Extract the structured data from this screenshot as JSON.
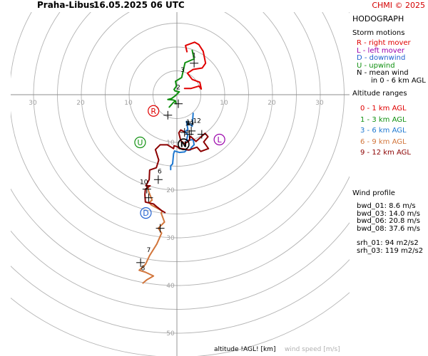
{
  "header": {
    "station": "Praha-Libus",
    "datetime": "16.05.2025 06 UTC",
    "credit": "CHMI © 2025"
  },
  "panel": {
    "title": "HODOGRAPH",
    "storm_motions": {
      "title": "Storm motions",
      "items": [
        {
          "text": "R - right mover",
          "color": "#e00000"
        },
        {
          "text": "L - left mover",
          "color": "#9900aa"
        },
        {
          "text": "D - downwind",
          "color": "#1f5fd0"
        },
        {
          "text": "U - upwind",
          "color": "#109010"
        },
        {
          "text": "N - mean wind",
          "color": "#000000"
        },
        {
          "text": "in 0 - 6 km AGL",
          "color": "#000000",
          "indent": true
        }
      ]
    },
    "altitude_ranges": {
      "title": "Altitude ranges",
      "items": [
        {
          "text": "0 - 1 km AGL",
          "color": "#e00000"
        },
        {
          "text": "1 - 3 km AGL",
          "color": "#109010"
        },
        {
          "text": "3 - 6 km AGL",
          "color": "#1f78d0"
        },
        {
          "text": "6 - 9 km AGL",
          "color": "#d2763c"
        },
        {
          "text": "9 - 12 km AGL",
          "color": "#8b0000"
        }
      ]
    },
    "wind_profile": {
      "title": "Wind profile",
      "items": [
        "bwd_01: 8.6 m/s",
        "bwd_03: 14.0 m/s",
        "bwd_06: 20.8 m/s",
        "bwd_08: 37.6 m/s",
        "srh_01: 94 m2/s2",
        "srh_03: 119 m2/s2"
      ]
    }
  },
  "footer": {
    "altitude_label": "altitude !AGL! [km]",
    "wind_speed_label": "wind speed [m/s]"
  },
  "chart_data": {
    "type": "line",
    "title": "HODOGRAPH",
    "xlabel": "",
    "ylabel": "",
    "units": "m/s",
    "rings": [
      5,
      10,
      15,
      20,
      25,
      30,
      35,
      40,
      45,
      50,
      55
    ],
    "ring_labels_y": [
      "10",
      "20",
      "30",
      "40",
      "50"
    ],
    "ring_labels_x_left": [
      "30",
      "20",
      "10"
    ],
    "ring_labels_x_right": [
      "10",
      "20",
      "30"
    ],
    "grid": true,
    "series": [
      {
        "name": "0 - 1 km AGL",
        "color": "#e00000",
        "points": [
          [
            1.6,
            -1.3
          ],
          [
            2.9,
            -1.3
          ],
          [
            4.6,
            -1.8
          ],
          [
            5.1,
            -1.2
          ],
          [
            4.8,
            -2.6
          ],
          [
            3.2,
            -3.2
          ],
          [
            2.2,
            -4.5
          ],
          [
            3.4,
            -5.3
          ],
          [
            5.3,
            -5.6
          ],
          [
            6.0,
            -6.6
          ],
          [
            5.5,
            -9.1
          ],
          [
            4.6,
            -10.5
          ],
          [
            3.7,
            -11.0
          ],
          [
            1.8,
            -10.3
          ],
          [
            2.1,
            -9.0
          ]
        ]
      },
      {
        "name": "1 - 3 km AGL",
        "color": "#109010",
        "points": [
          [
            -1.6,
            2.6
          ],
          [
            -0.8,
            1.7
          ],
          [
            -0.3,
            1.3
          ],
          [
            -0.2,
            1.9
          ],
          [
            -0.3,
            1.3
          ],
          [
            -0.8,
            1.1
          ],
          [
            -1.9,
            1.0
          ],
          [
            -1.1,
            0.8
          ],
          [
            -0.3,
            0.2
          ],
          [
            0.5,
            -0.6
          ],
          [
            -0.4,
            -0.8
          ],
          [
            -0.6,
            -1.1
          ],
          [
            -0.1,
            -1.8
          ],
          [
            -0.3,
            -2.8
          ],
          [
            1.0,
            -3.6
          ],
          [
            1.7,
            -6.7
          ],
          [
            3.6,
            -7.5
          ],
          [
            3.2,
            -9.3
          ]
        ]
      },
      {
        "name": "3 - 6 km AGL",
        "color": "#1f78d0",
        "points": [
          [
            -1.3,
            15.7
          ],
          [
            -1.3,
            14.9
          ],
          [
            -0.9,
            14.5
          ],
          [
            -0.7,
            12.4
          ],
          [
            -0.5,
            11.8
          ],
          [
            0.5,
            12.1
          ],
          [
            1.6,
            12.0
          ],
          [
            2.0,
            11.6
          ],
          [
            2.8,
            11.6
          ],
          [
            3.0,
            11.1
          ],
          [
            3.6,
            10.5
          ],
          [
            3.4,
            9.4
          ],
          [
            2.0,
            9.6
          ],
          [
            2.3,
            8.3
          ],
          [
            1.6,
            7.8
          ],
          [
            2.3,
            7.3
          ],
          [
            2.0,
            5.6
          ],
          [
            3.2,
            6.6
          ],
          [
            3.4,
            3.9
          ]
        ]
      },
      {
        "name": "6 - 9 km AGL",
        "color": "#d2763c",
        "points": [
          [
            -7.1,
            39.5
          ],
          [
            -6.3,
            38.8
          ],
          [
            -4.9,
            38.0
          ],
          [
            -6.6,
            37.2
          ],
          [
            -7.9,
            36.8
          ],
          [
            -6.6,
            35.6
          ],
          [
            -5.7,
            33.7
          ],
          [
            -4.2,
            31.3
          ],
          [
            -3.2,
            29.0
          ],
          [
            -3.9,
            28.0
          ],
          [
            -2.6,
            26.7
          ],
          [
            -3.3,
            24.8
          ],
          [
            -3.0,
            24.4
          ],
          [
            -5.4,
            23.1
          ],
          [
            -5.8,
            22.6
          ],
          [
            -5.2,
            22.1
          ],
          [
            -5.9,
            20.3
          ],
          [
            -6.1,
            19.3
          ]
        ]
      },
      {
        "name": "9 - 12 km AGL",
        "color": "#8b0000",
        "points": [
          [
            -2.5,
            24.7
          ],
          [
            -3.2,
            24.3
          ],
          [
            -4.2,
            23.5
          ],
          [
            -4.9,
            22.9
          ],
          [
            -6.6,
            22.5
          ],
          [
            -6.7,
            20.9
          ],
          [
            -6.6,
            19.8
          ],
          [
            -5.6,
            19.1
          ],
          [
            -6.5,
            19.1
          ],
          [
            -5.8,
            17.8
          ],
          [
            -5.7,
            15.8
          ],
          [
            -4.3,
            15.3
          ],
          [
            -3.8,
            13.7
          ],
          [
            -4.5,
            11.5
          ],
          [
            -3.5,
            10.5
          ],
          [
            -2.0,
            10.5
          ],
          [
            -0.7,
            11.3
          ],
          [
            -0.6,
            10.7
          ],
          [
            0.1,
            10.9
          ],
          [
            0.5,
            11.3
          ],
          [
            1.0,
            11.3
          ],
          [
            2.5,
            11.6
          ],
          [
            4.2,
            11.0
          ],
          [
            5.0,
            11.9
          ],
          [
            6.6,
            11.3
          ],
          [
            5.6,
            9.9
          ],
          [
            6.5,
            8.8
          ],
          [
            5.9,
            8.1
          ],
          [
            4.0,
            9.8
          ],
          [
            2.8,
            8.7
          ],
          [
            2.6,
            9.6
          ],
          [
            1.6,
            10.3
          ],
          [
            0.8,
            9.6
          ],
          [
            0.4,
            8.0
          ],
          [
            0.8,
            7.4
          ],
          [
            1.6,
            7.8
          ]
        ]
      }
    ],
    "altitude_labels": [
      {
        "text": "1",
        "u": 3.6,
        "v": -7.8
      },
      {
        "text": "2",
        "u": 0.3,
        "v": -1.1
      },
      {
        "text": "3",
        "u": 1.2,
        "v": -4.8
      },
      {
        "text": "4",
        "u": 2.4,
        "v": 6.5
      },
      {
        "text": "5",
        "u": 2.2,
        "v": 6.5
      },
      {
        "text": "6",
        "u": -3.6,
        "v": 16.5
      },
      {
        "text": "7",
        "u": -5.9,
        "v": 33.0
      },
      {
        "text": "8",
        "u": -7.1,
        "v": 36.8
      },
      {
        "text": "9",
        "u": 3.1,
        "v": 6.5
      },
      {
        "text": "10",
        "u": -6.9,
        "v": 18.7
      },
      {
        "text": "11",
        "u": 2.8,
        "v": 6.2
      },
      {
        "text": "12",
        "u": 4.2,
        "v": 5.9
      }
    ],
    "altitude_markers": [
      {
        "u": 3.6,
        "v": -6.6
      },
      {
        "u": 0.3,
        "v": 1.9
      },
      {
        "u": -1.9,
        "v": 4.3
      },
      {
        "u": 1.6,
        "v": 7.9
      },
      {
        "u": 2.6,
        "v": 8.3
      },
      {
        "u": -3.9,
        "v": 17.8
      },
      {
        "u": -5.9,
        "v": 21.6
      },
      {
        "u": -3.5,
        "v": 28.0
      },
      {
        "u": -7.6,
        "v": 35.2
      },
      {
        "u": -6.3,
        "v": 19.8
      },
      {
        "u": 3.0,
        "v": 7.6
      },
      {
        "u": 5.2,
        "v": 8.3
      }
    ],
    "storm_motions": [
      {
        "label": "R",
        "u": -4.9,
        "v": 3.4,
        "color": "#e00000"
      },
      {
        "label": "L",
        "u": 8.9,
        "v": 9.4,
        "color": "#9900aa"
      },
      {
        "label": "D",
        "u": -6.5,
        "v": 24.8,
        "color": "#1f5fd0"
      },
      {
        "label": "U",
        "u": -7.7,
        "v": 10.0,
        "color": "#109010"
      },
      {
        "label": "N",
        "u": 1.4,
        "v": 10.4,
        "color": "#000000"
      }
    ]
  }
}
